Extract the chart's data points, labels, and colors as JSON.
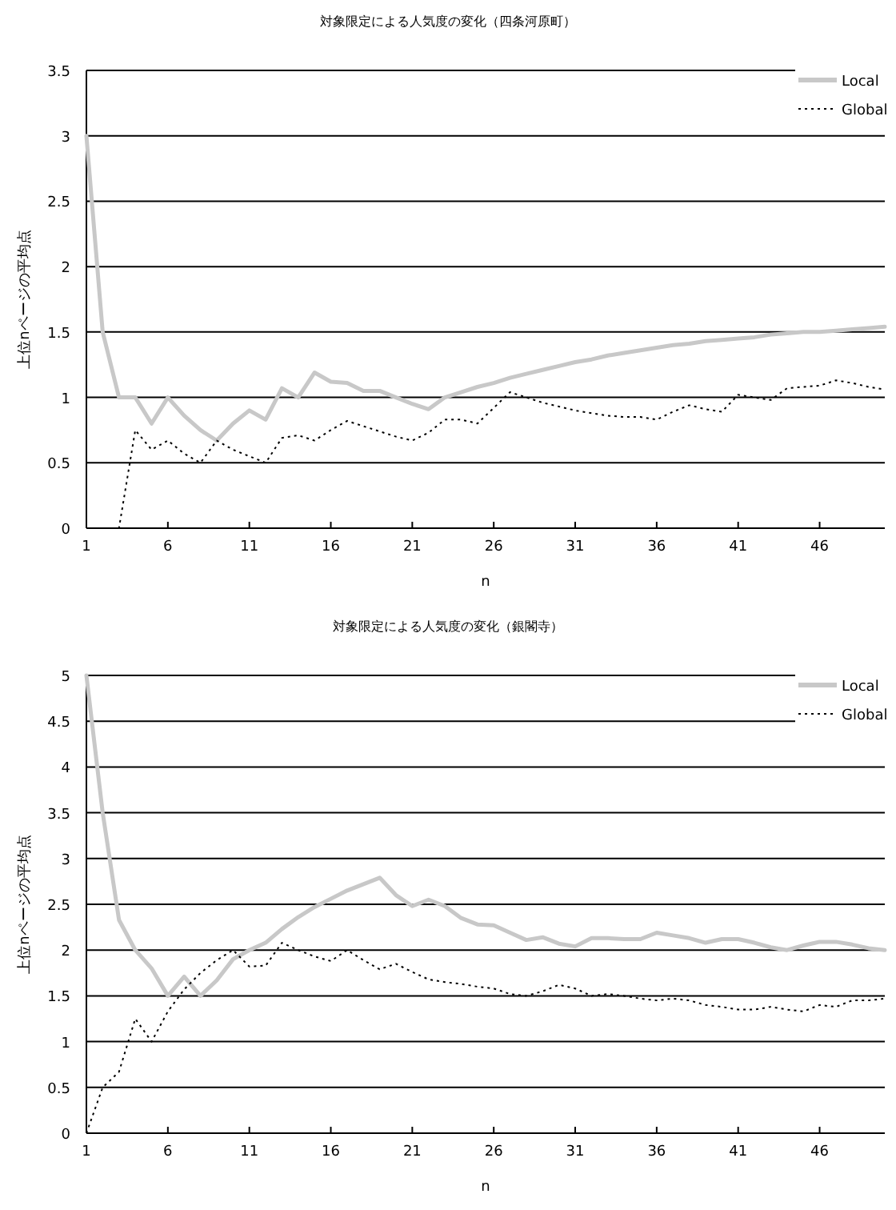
{
  "chart_data": [
    {
      "type": "line",
      "title": "対象限定による人気度の変化（四条河原町）",
      "xlabel": "n",
      "ylabel": "上位nページの平均点",
      "x": [
        1,
        2,
        3,
        4,
        5,
        6,
        7,
        8,
        9,
        10,
        11,
        12,
        13,
        14,
        15,
        16,
        17,
        18,
        19,
        20,
        21,
        22,
        23,
        24,
        25,
        26,
        27,
        28,
        29,
        30,
        31,
        32,
        33,
        34,
        35,
        36,
        37,
        38,
        39,
        40,
        41,
        42,
        43,
        44,
        45,
        46,
        47,
        48,
        49,
        50
      ],
      "xlim": [
        1,
        50
      ],
      "xticks": [
        1,
        6,
        11,
        16,
        21,
        26,
        31,
        36,
        41,
        46
      ],
      "ylim": [
        0,
        3.5
      ],
      "yticks": [
        0,
        0.5,
        1,
        1.5,
        2,
        2.5,
        3,
        3.5
      ],
      "grid": "y",
      "legend": "top right",
      "series": [
        {
          "name": "Local",
          "color": "#c8c8c8",
          "line_style": "solid",
          "values": [
            3.0,
            1.5,
            1.0,
            1.0,
            0.8,
            1.0,
            0.86,
            0.75,
            0.67,
            0.8,
            0.9,
            0.83,
            1.07,
            1.0,
            1.19,
            1.12,
            1.11,
            1.05,
            1.05,
            1.0,
            0.95,
            0.91,
            1.0,
            1.04,
            1.08,
            1.11,
            1.15,
            1.18,
            1.21,
            1.24,
            1.27,
            1.29,
            1.32,
            1.34,
            1.36,
            1.38,
            1.4,
            1.41,
            1.43,
            1.44,
            1.45,
            1.46,
            1.48,
            1.49,
            1.5,
            1.5,
            1.51,
            1.52,
            1.53,
            1.54
          ]
        },
        {
          "name": "Global",
          "color": "#000000",
          "line_style": "dotted",
          "values": [
            0,
            0,
            0,
            0.75,
            0.6,
            0.67,
            0.57,
            0.5,
            0.67,
            0.6,
            0.55,
            0.5,
            0.69,
            0.71,
            0.67,
            0.75,
            0.82,
            0.78,
            0.74,
            0.7,
            0.67,
            0.73,
            0.83,
            0.83,
            0.8,
            0.92,
            1.04,
            1.0,
            0.96,
            0.93,
            0.9,
            0.88,
            0.86,
            0.85,
            0.85,
            0.83,
            0.89,
            0.94,
            0.91,
            0.89,
            1.02,
            1.0,
            0.98,
            1.07,
            1.08,
            1.09,
            1.13,
            1.11,
            1.08,
            1.06
          ]
        }
      ]
    },
    {
      "type": "line",
      "title": "対象限定による人気度の変化（銀閣寺）",
      "xlabel": "n",
      "ylabel": "上位nページの平均点",
      "x": [
        1,
        2,
        3,
        4,
        5,
        6,
        7,
        8,
        9,
        10,
        11,
        12,
        13,
        14,
        15,
        16,
        17,
        18,
        19,
        20,
        21,
        22,
        23,
        24,
        25,
        26,
        27,
        28,
        29,
        30,
        31,
        32,
        33,
        34,
        35,
        36,
        37,
        38,
        39,
        40,
        41,
        42,
        43,
        44,
        45,
        46,
        47,
        48,
        49,
        50
      ],
      "xlim": [
        1,
        50
      ],
      "xticks": [
        1,
        6,
        11,
        16,
        21,
        26,
        31,
        36,
        41,
        46
      ],
      "ylim": [
        0,
        5
      ],
      "yticks": [
        0,
        0.5,
        1,
        1.5,
        2,
        2.5,
        3,
        3.5,
        4,
        4.5,
        5
      ],
      "grid": "y",
      "legend": "top right",
      "series": [
        {
          "name": "Local",
          "color": "#c8c8c8",
          "line_style": "solid",
          "values": [
            5.0,
            3.5,
            2.33,
            2.0,
            1.8,
            1.5,
            1.71,
            1.5,
            1.67,
            1.9,
            2.0,
            2.08,
            2.23,
            2.36,
            2.47,
            2.56,
            2.65,
            2.72,
            2.79,
            2.6,
            2.48,
            2.55,
            2.48,
            2.35,
            2.28,
            2.27,
            2.19,
            2.11,
            2.14,
            2.07,
            2.04,
            2.13,
            2.13,
            2.12,
            2.12,
            2.19,
            2.16,
            2.13,
            2.08,
            2.12,
            2.12,
            2.08,
            2.03,
            2.0,
            2.05,
            2.09,
            2.09,
            2.06,
            2.02,
            2.0
          ]
        },
        {
          "name": "Global",
          "color": "#000000",
          "line_style": "dotted",
          "values": [
            0,
            0.5,
            0.67,
            1.25,
            1.0,
            1.33,
            1.57,
            1.75,
            1.89,
            2.0,
            1.82,
            1.83,
            2.08,
            2.0,
            1.93,
            1.88,
            2.0,
            1.89,
            1.79,
            1.85,
            1.76,
            1.68,
            1.65,
            1.63,
            1.6,
            1.58,
            1.52,
            1.5,
            1.55,
            1.62,
            1.58,
            1.5,
            1.52,
            1.5,
            1.47,
            1.45,
            1.47,
            1.45,
            1.4,
            1.38,
            1.35,
            1.35,
            1.38,
            1.35,
            1.33,
            1.4,
            1.38,
            1.45,
            1.45,
            1.47
          ]
        }
      ]
    }
  ]
}
